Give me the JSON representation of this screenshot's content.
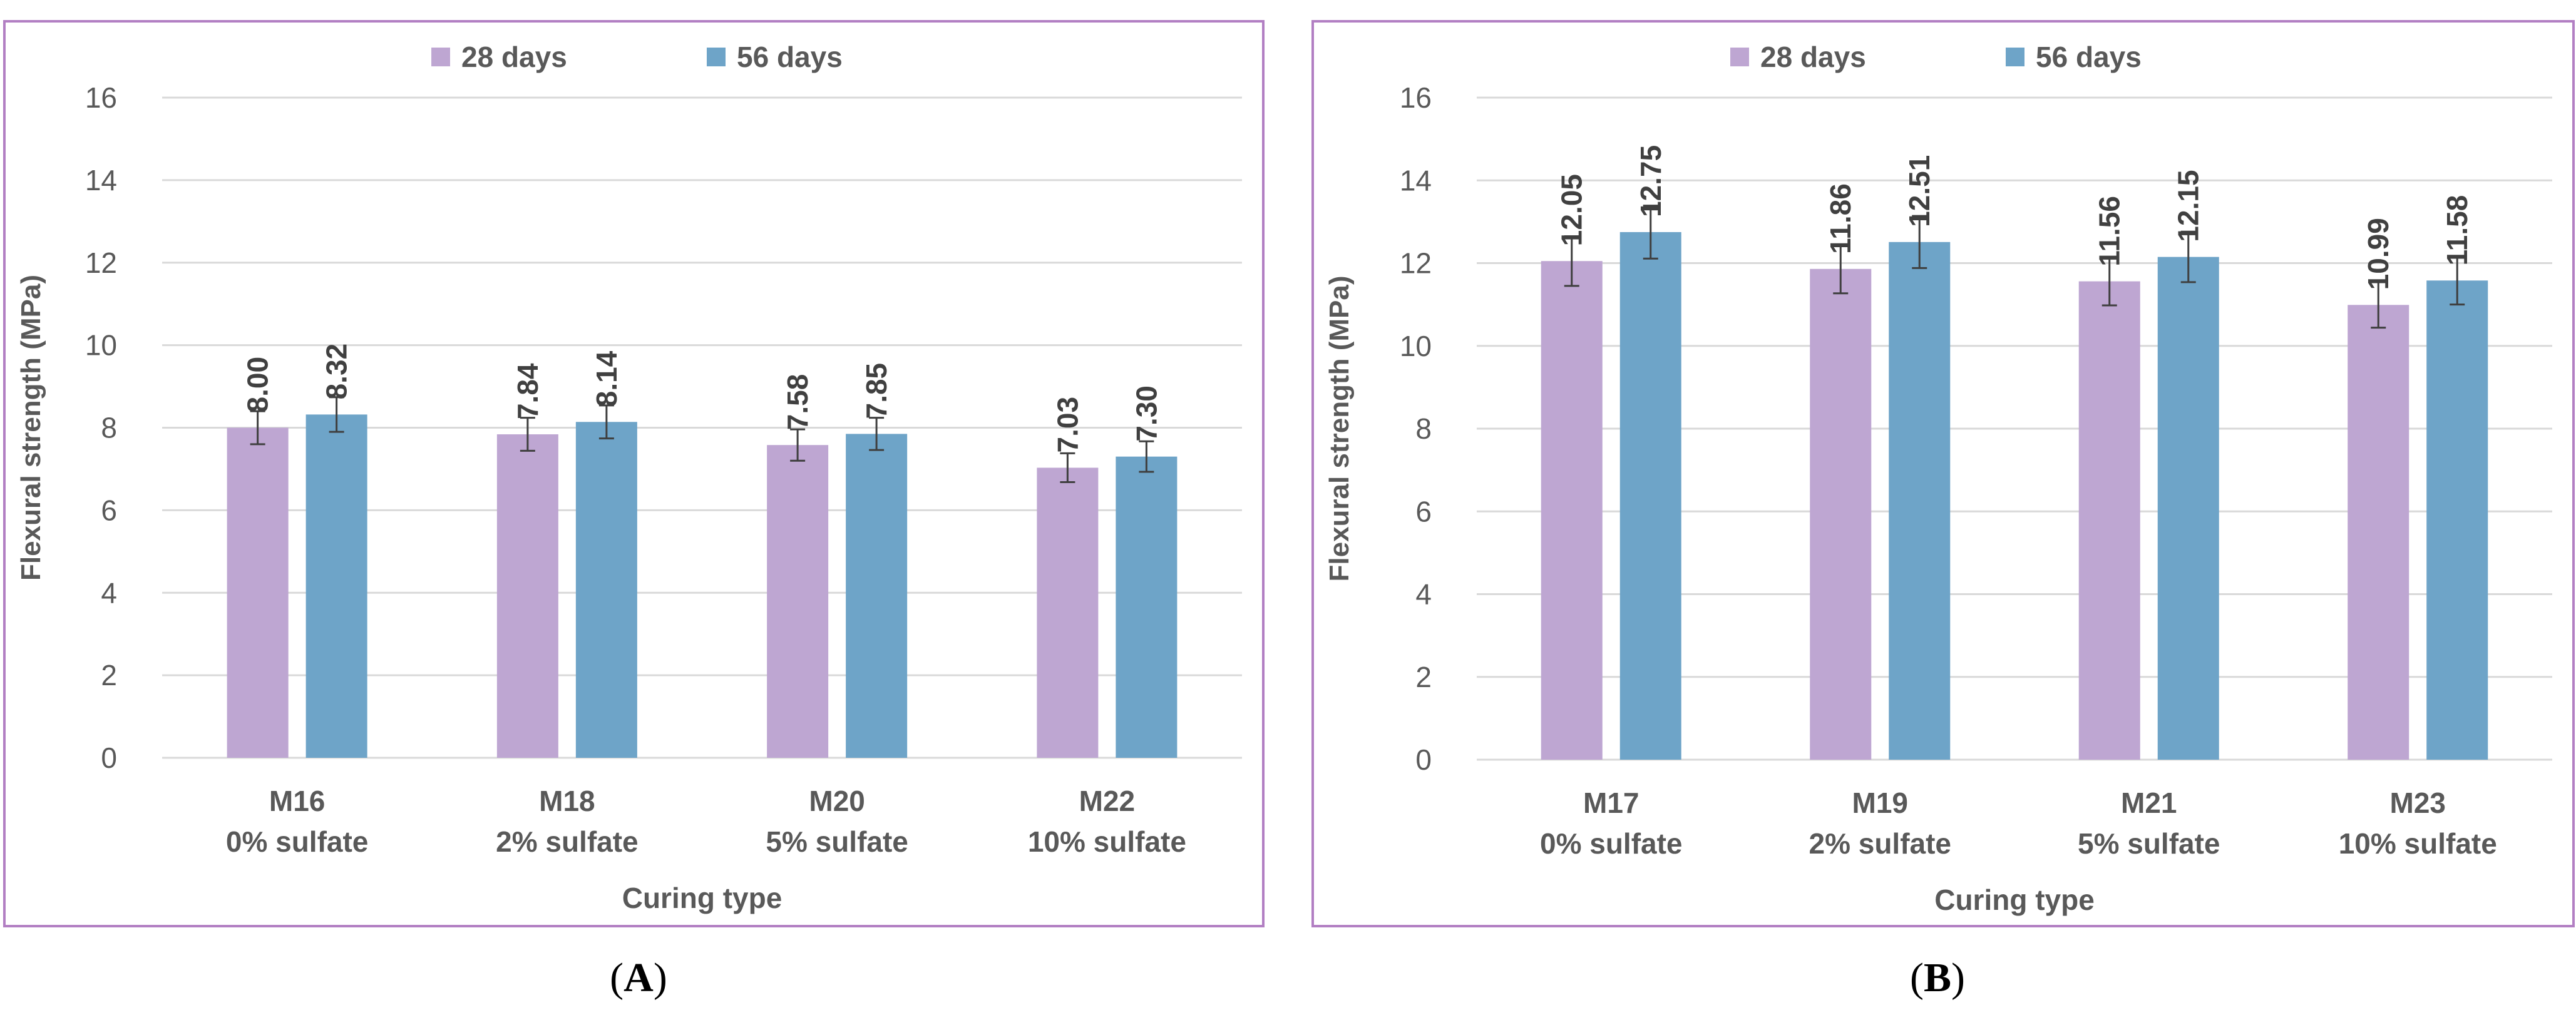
{
  "colors": {
    "series1": "#bea6d2",
    "series2": "#6ea4c8",
    "border": "#b27fc3",
    "grid": "#d9d9d9",
    "text": "#595959",
    "error": "#3f3f3f"
  },
  "captions": {
    "a_open": "(",
    "a_letter": "A",
    "a_close": ")",
    "b_open": "(",
    "b_letter": "B",
    "b_close": ")"
  },
  "chart_data": [
    {
      "type": "bar",
      "panel": "A",
      "legend": [
        "28 days",
        "56 days"
      ],
      "legend_position": "top-center",
      "ylabel": "Flexural  strength (MPa)",
      "xlabel": "Curing type",
      "ylim": [
        0,
        16
      ],
      "yticks": [
        "0",
        "2",
        "4",
        "6",
        "8",
        "10",
        "12",
        "14",
        "16"
      ],
      "grid": true,
      "categories": [
        [
          "M16",
          "0% sulfate"
        ],
        [
          "M18",
          "2% sulfate"
        ],
        [
          "M20",
          "5% sulfate"
        ],
        [
          "M22",
          "10% sulfate"
        ]
      ],
      "series": [
        {
          "name": "28 days",
          "values": [
            8.0,
            7.84,
            7.58,
            7.03
          ],
          "labels": [
            "8.00",
            "7.84",
            "7.58",
            "7.03"
          ],
          "errors": [
            0.4,
            0.4,
            0.38,
            0.35
          ]
        },
        {
          "name": "56 days",
          "values": [
            8.32,
            8.14,
            7.85,
            7.3
          ],
          "labels": [
            "8.32",
            "8.14",
            "7.85",
            "7.30"
          ],
          "errors": [
            0.42,
            0.4,
            0.39,
            0.37
          ]
        }
      ]
    },
    {
      "type": "bar",
      "panel": "B",
      "legend": [
        "28 days",
        "56 days"
      ],
      "legend_position": "top-center",
      "ylabel": "Flexural  strength (MPa)",
      "xlabel": "Curing type",
      "ylim": [
        0,
        16
      ],
      "yticks": [
        "0",
        "2",
        "4",
        "6",
        "8",
        "10",
        "12",
        "14",
        "16"
      ],
      "grid": true,
      "categories": [
        [
          "M17",
          "0% sulfate"
        ],
        [
          "M19",
          "2% sulfate"
        ],
        [
          "M21",
          "5% sulfate"
        ],
        [
          "M23",
          "10% sulfate"
        ]
      ],
      "series": [
        {
          "name": "28 days",
          "values": [
            12.05,
            11.86,
            11.56,
            10.99
          ],
          "labels": [
            "12.05",
            "11.86",
            "11.56",
            "10.99"
          ],
          "errors": [
            0.6,
            0.59,
            0.58,
            0.55
          ]
        },
        {
          "name": "56 days",
          "values": [
            12.75,
            12.51,
            12.15,
            11.58
          ],
          "labels": [
            "12.75",
            "12.51",
            "12.15",
            "11.58"
          ],
          "errors": [
            0.64,
            0.63,
            0.61,
            0.58
          ]
        }
      ]
    }
  ]
}
